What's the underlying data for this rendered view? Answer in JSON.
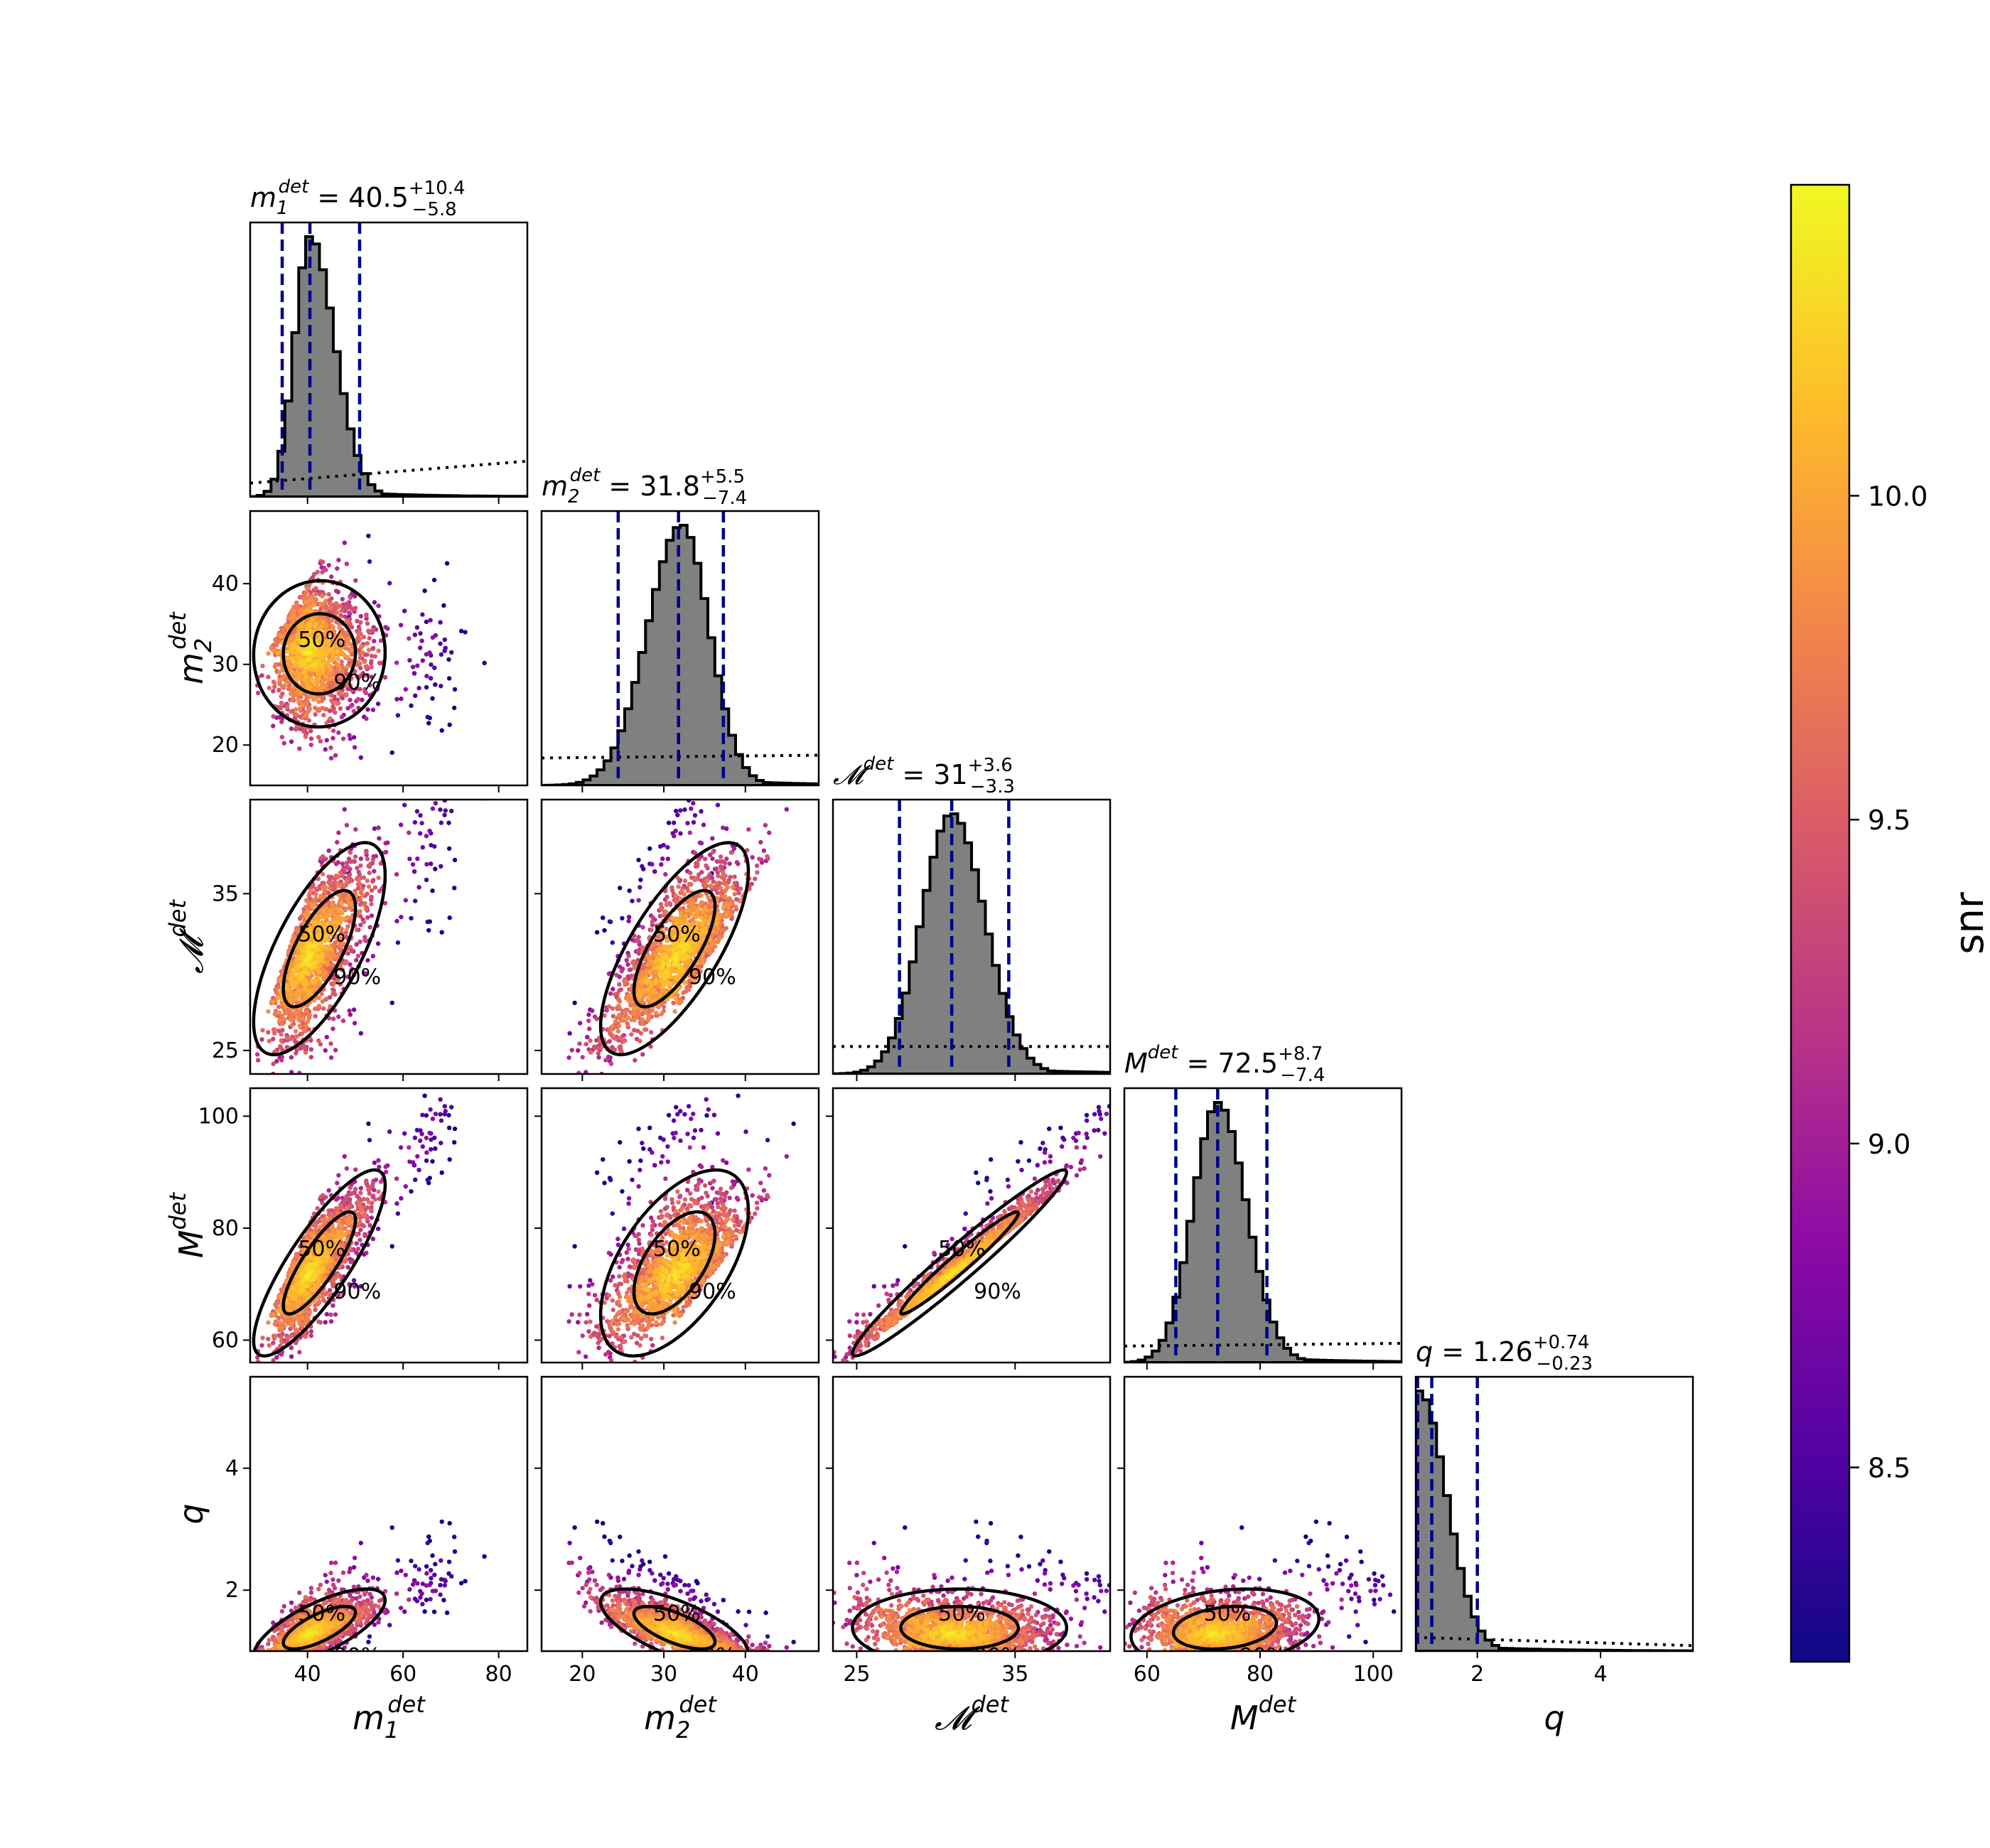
{
  "chart_data": {
    "type": "corner",
    "parameters": [
      {
        "key": "m1",
        "symbol": "m",
        "sub": "1",
        "sup": "det",
        "median": "40.5",
        "plus": "+10.4",
        "minus": "−5.8",
        "range": [
          28,
          86
        ],
        "ticks": [
          40,
          60,
          80
        ],
        "title_text": "m₁ᵈᵉᵗ = 40.5 +10.4 −5.8",
        "quantiles": [
          34.7,
          40.5,
          50.9
        ],
        "peak": 40.5,
        "sl": 3.2,
        "sr": 5.2
      },
      {
        "key": "m2",
        "symbol": "m",
        "sub": "2",
        "sup": "det",
        "median": "31.8",
        "plus": "+5.5",
        "minus": "−7.4",
        "range": [
          15,
          49
        ],
        "ticks": [
          20,
          30,
          40
        ],
        "title_text": "m₂ᵈᵉᵗ = 31.8 +5.5 −7.4",
        "quantiles": [
          24.4,
          31.8,
          37.3
        ],
        "peak": 32.2,
        "sl": 4.2,
        "sr": 3.4
      },
      {
        "key": "mc",
        "symbol": "𝓜",
        "sub": "",
        "sup": "det",
        "median": "31",
        "plus": "+3.6",
        "minus": "−3.3",
        "range": [
          23.5,
          41
        ],
        "ticks": [
          25,
          35
        ],
        "title_text": "𝓜ᵈᵉᵗ = 31 +3.6 −3.3",
        "quantiles": [
          27.7,
          31.0,
          34.6
        ],
        "peak": 31.0,
        "sl": 1.9,
        "sr": 2.1
      },
      {
        "key": "M",
        "symbol": "M",
        "sub": "",
        "sup": "det",
        "median": "72.5",
        "plus": "+8.7",
        "minus": "−7.4",
        "range": [
          56,
          105
        ],
        "ticks": [
          60,
          80,
          100
        ],
        "title_text": "Mᵈᵉᵗ = 72.5 +8.7 −7.4",
        "quantiles": [
          65.1,
          72.5,
          81.2
        ],
        "peak": 72.5,
        "sl": 4.4,
        "sr": 5.1
      },
      {
        "key": "q",
        "symbol": "q",
        "sub": "",
        "sup": "",
        "median": "1.26",
        "plus": "+0.74",
        "minus": "−0.23",
        "range": [
          1,
          5.5
        ],
        "ticks": [
          2,
          4
        ],
        "title_text": "q = 1.26 +0.74 −0.23",
        "quantiles": [
          1.03,
          1.26,
          2.0
        ],
        "peak": 1.05,
        "sl": 0.05,
        "sr": 0.45
      }
    ],
    "ytick_labels": {
      "m2": [
        20,
        30,
        40
      ],
      "mc": [
        25,
        35
      ],
      "M": [
        60,
        80,
        100
      ],
      "q": [
        2,
        4
      ]
    },
    "lower_panels_type": "scatter colored by snr with 50% / 90% credible contours",
    "contour_levels": [
      "50%",
      "90%"
    ],
    "histogram_style": {
      "fill": "#808080",
      "edge": "#000000",
      "quantile_line": "#00008B",
      "prior_line": "dotted black"
    },
    "colorbar": {
      "label": "snr",
      "colormap": "plasma",
      "range": [
        8.2,
        10.48
      ],
      "ticks": [
        "8.5",
        "9.0",
        "9.5",
        "10.0"
      ],
      "tick_values": [
        8.5,
        9.0,
        9.5,
        10.0
      ]
    }
  },
  "labels": {
    "m1": {
      "base": "m",
      "sub": "1",
      "sup": "det"
    },
    "m2": {
      "base": "m",
      "sub": "2",
      "sup": "det"
    },
    "mc": {
      "base": "𝓜",
      "sub": "",
      "sup": "det"
    },
    "M": {
      "base": "M",
      "sub": "",
      "sup": "det"
    },
    "q": {
      "base": "q",
      "sub": "",
      "sup": ""
    }
  },
  "colors": {
    "hist_fill": "#808080",
    "quantile": "#00008B",
    "plasma": [
      "#0d0887",
      "#5302a3",
      "#8b0aa5",
      "#b83289",
      "#db5c68",
      "#f48849",
      "#febc2a",
      "#f0f921"
    ]
  }
}
